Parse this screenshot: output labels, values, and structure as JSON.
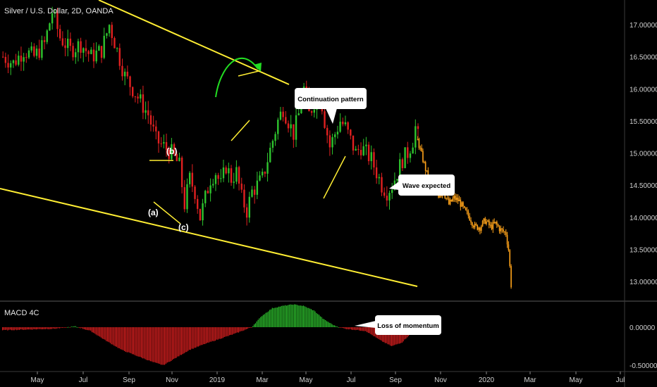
{
  "chart_title": "Silver / U.S. Dollar, 2D, OANDA",
  "indicator_title": "MACD 4C",
  "colors": {
    "up": "#2ec42e",
    "down": "#e02020",
    "forecast": "#ffa31a",
    "trendline": "#ffee33",
    "arrow": "#22dd22"
  },
  "chart_data": {
    "type": "candlestick",
    "price_axis": {
      "ticks": [
        13.0,
        13.5,
        14.0,
        14.5,
        15.0,
        15.5,
        16.0,
        16.5,
        17.0
      ],
      "tick_labels": [
        "13.00000",
        "13.50000",
        "14.00000",
        "14.50000",
        "15.00000",
        "15.50000",
        "16.00000",
        "16.50000",
        "17.00000"
      ],
      "range": [
        12.6,
        17.6
      ]
    },
    "macd_axis": {
      "tick_labels": [
        "0.00000",
        "-0.50000"
      ],
      "ticks": [
        0.0,
        -0.5
      ],
      "range": [
        -0.55,
        0.35
      ]
    },
    "time_axis": {
      "labels": [
        "May",
        "Jul",
        "Sep",
        "Nov",
        "2019",
        "Mar",
        "May",
        "Jul",
        "Sep",
        "Nov",
        "2020",
        "Mar",
        "May",
        "Jul"
      ]
    },
    "price_path": [
      [
        0,
        16.5
      ],
      [
        4,
        16.4
      ],
      [
        8,
        16.6
      ],
      [
        12,
        16.5
      ],
      [
        16,
        16.7
      ],
      [
        19,
        17.2
      ],
      [
        22,
        16.8
      ],
      [
        26,
        16.6
      ],
      [
        30,
        16.7
      ],
      [
        34,
        16.5
      ],
      [
        38,
        16.6
      ],
      [
        41,
        17.0
      ],
      [
        44,
        16.6
      ],
      [
        47,
        16.2
      ],
      [
        50,
        16.0
      ],
      [
        53,
        15.8
      ],
      [
        56,
        15.6
      ],
      [
        59,
        15.2
      ],
      [
        62,
        15.1
      ],
      [
        65,
        15.0
      ],
      [
        68,
        14.8
      ],
      [
        70,
        14.2
      ],
      [
        72,
        14.6
      ],
      [
        74,
        14.4
      ],
      [
        76,
        14.0
      ],
      [
        78,
        14.3
      ],
      [
        80,
        14.6
      ],
      [
        82,
        14.7
      ],
      [
        84,
        14.5
      ],
      [
        86,
        14.8
      ],
      [
        88,
        14.6
      ],
      [
        90,
        14.7
      ],
      [
        92,
        14.3
      ],
      [
        94,
        14.1
      ],
      [
        96,
        14.4
      ],
      [
        98,
        14.5
      ],
      [
        100,
        14.6
      ],
      [
        102,
        14.9
      ],
      [
        104,
        15.2
      ],
      [
        106,
        15.5
      ],
      [
        108,
        15.7
      ],
      [
        110,
        15.5
      ],
      [
        112,
        15.3
      ],
      [
        114,
        15.6
      ],
      [
        116,
        16.0
      ],
      [
        118,
        15.6
      ],
      [
        120,
        15.8
      ],
      [
        122,
        16.0
      ],
      [
        124,
        15.5
      ],
      [
        126,
        15.1
      ],
      [
        128,
        15.3
      ],
      [
        130,
        15.5
      ],
      [
        132,
        15.4
      ],
      [
        134,
        15.2
      ],
      [
        136,
        15.0
      ],
      [
        138,
        15.1
      ],
      [
        140,
        15.0
      ],
      [
        142,
        14.9
      ],
      [
        144,
        14.7
      ],
      [
        146,
        14.5
      ],
      [
        148,
        14.4
      ],
      [
        150,
        14.5
      ],
      [
        152,
        14.7
      ],
      [
        154,
        14.9
      ],
      [
        156,
        15.0
      ],
      [
        158,
        15.2
      ],
      [
        159,
        15.4
      ],
      [
        160,
        15.25
      ]
    ],
    "forecast_path": [
      [
        160,
        15.2
      ],
      [
        162,
        14.9
      ],
      [
        164,
        14.6
      ],
      [
        166,
        14.45
      ],
      [
        168,
        14.35
      ],
      [
        170,
        14.4
      ],
      [
        172,
        14.2
      ],
      [
        174,
        14.3
      ],
      [
        176,
        14.25
      ],
      [
        178,
        14.1
      ],
      [
        180,
        14.0
      ],
      [
        182,
        13.85
      ],
      [
        184,
        13.85
      ],
      [
        186,
        13.95
      ],
      [
        188,
        13.85
      ],
      [
        190,
        13.9
      ],
      [
        192,
        13.8
      ],
      [
        194,
        13.75
      ],
      [
        195,
        13.5
      ],
      [
        196,
        12.95
      ]
    ],
    "macd_path": [
      [
        0,
        -0.04
      ],
      [
        10,
        -0.03
      ],
      [
        20,
        -0.02
      ],
      [
        28,
        0.01
      ],
      [
        34,
        -0.05
      ],
      [
        40,
        -0.18
      ],
      [
        46,
        -0.3
      ],
      [
        52,
        -0.38
      ],
      [
        58,
        -0.46
      ],
      [
        62,
        -0.5
      ],
      [
        66,
        -0.42
      ],
      [
        72,
        -0.3
      ],
      [
        78,
        -0.22
      ],
      [
        84,
        -0.15
      ],
      [
        90,
        -0.08
      ],
      [
        96,
        0.0
      ],
      [
        100,
        0.15
      ],
      [
        104,
        0.25
      ],
      [
        108,
        0.28
      ],
      [
        112,
        0.3
      ],
      [
        116,
        0.28
      ],
      [
        120,
        0.22
      ],
      [
        124,
        0.1
      ],
      [
        128,
        0.02
      ],
      [
        132,
        -0.02
      ],
      [
        140,
        -0.05
      ],
      [
        146,
        -0.18
      ],
      [
        150,
        -0.25
      ],
      [
        154,
        -0.2
      ],
      [
        158,
        -0.06
      ],
      [
        160,
        0.03
      ]
    ],
    "annotations": [
      {
        "name": "wave-a",
        "text": "(a)"
      },
      {
        "name": "wave-b",
        "text": "(b)"
      },
      {
        "name": "wave-c",
        "text": "(c)"
      }
    ],
    "callouts": [
      {
        "name": "continuation-pattern",
        "text": "Continuation pattern"
      },
      {
        "name": "wave-expected",
        "text": "Wave expected"
      },
      {
        "name": "loss-of-momentum",
        "text": "Loss of momentum"
      }
    ]
  }
}
